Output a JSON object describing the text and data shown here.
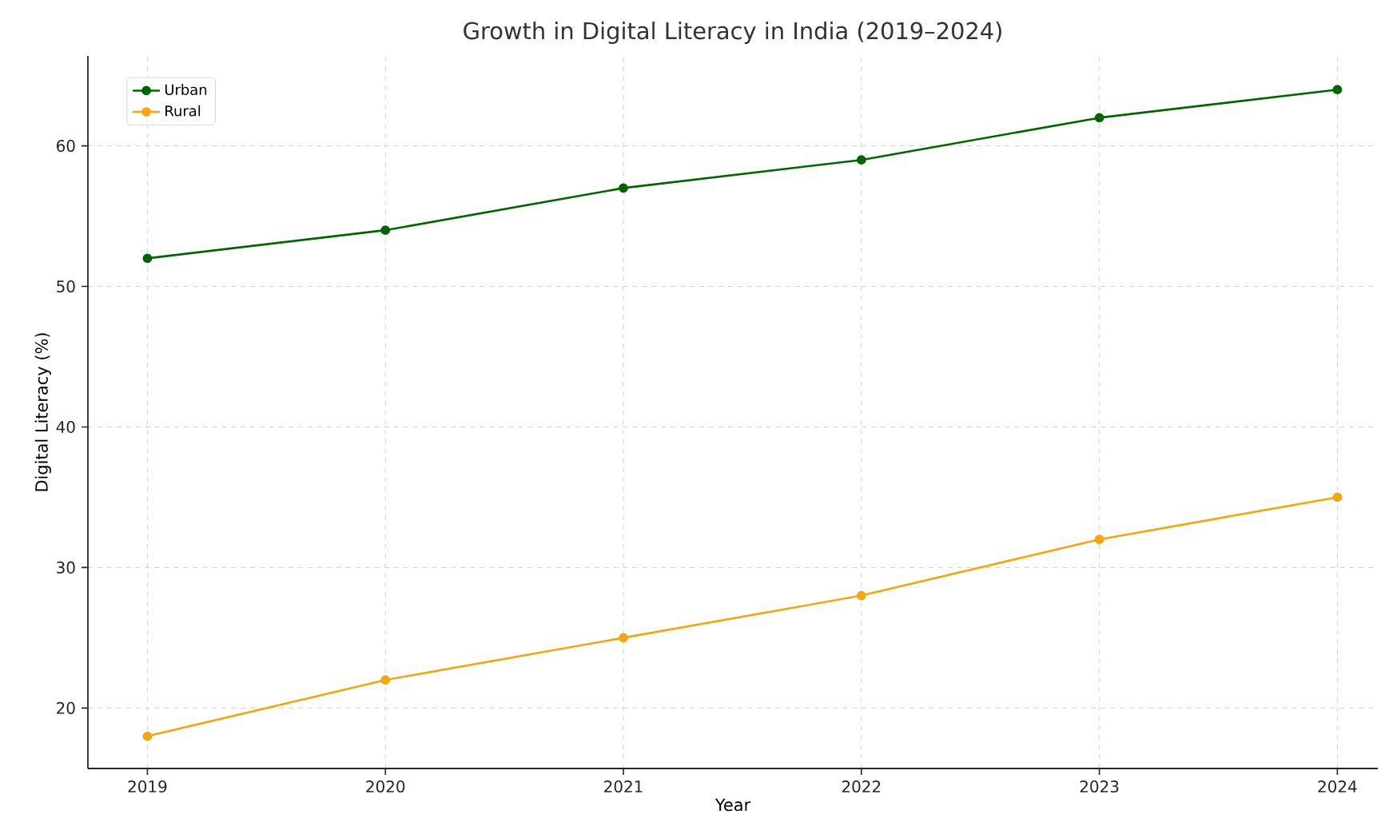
{
  "chart_data": {
    "type": "line",
    "title": "Growth in Digital Literacy in India (2019–2024)",
    "xlabel": "Year",
    "ylabel": "Digital Literacy (%)",
    "x": [
      2019,
      2020,
      2021,
      2022,
      2023,
      2024
    ],
    "series": [
      {
        "name": "Urban",
        "color": "#006400",
        "values": [
          52,
          54,
          57,
          59,
          62,
          64
        ]
      },
      {
        "name": "Rural",
        "color": "#f2a612",
        "values": [
          18,
          22,
          25,
          28,
          32,
          35
        ]
      }
    ],
    "xlim": [
      2018.75,
      2024.17
    ],
    "ylim": [
      15.7,
      66.4
    ],
    "xticks": [
      2019,
      2020,
      2021,
      2022,
      2023,
      2024
    ],
    "yticks": [
      20,
      30,
      40,
      50,
      60
    ],
    "grid": true,
    "legend": "top left",
    "marker": "circle",
    "line_style": "solid"
  }
}
